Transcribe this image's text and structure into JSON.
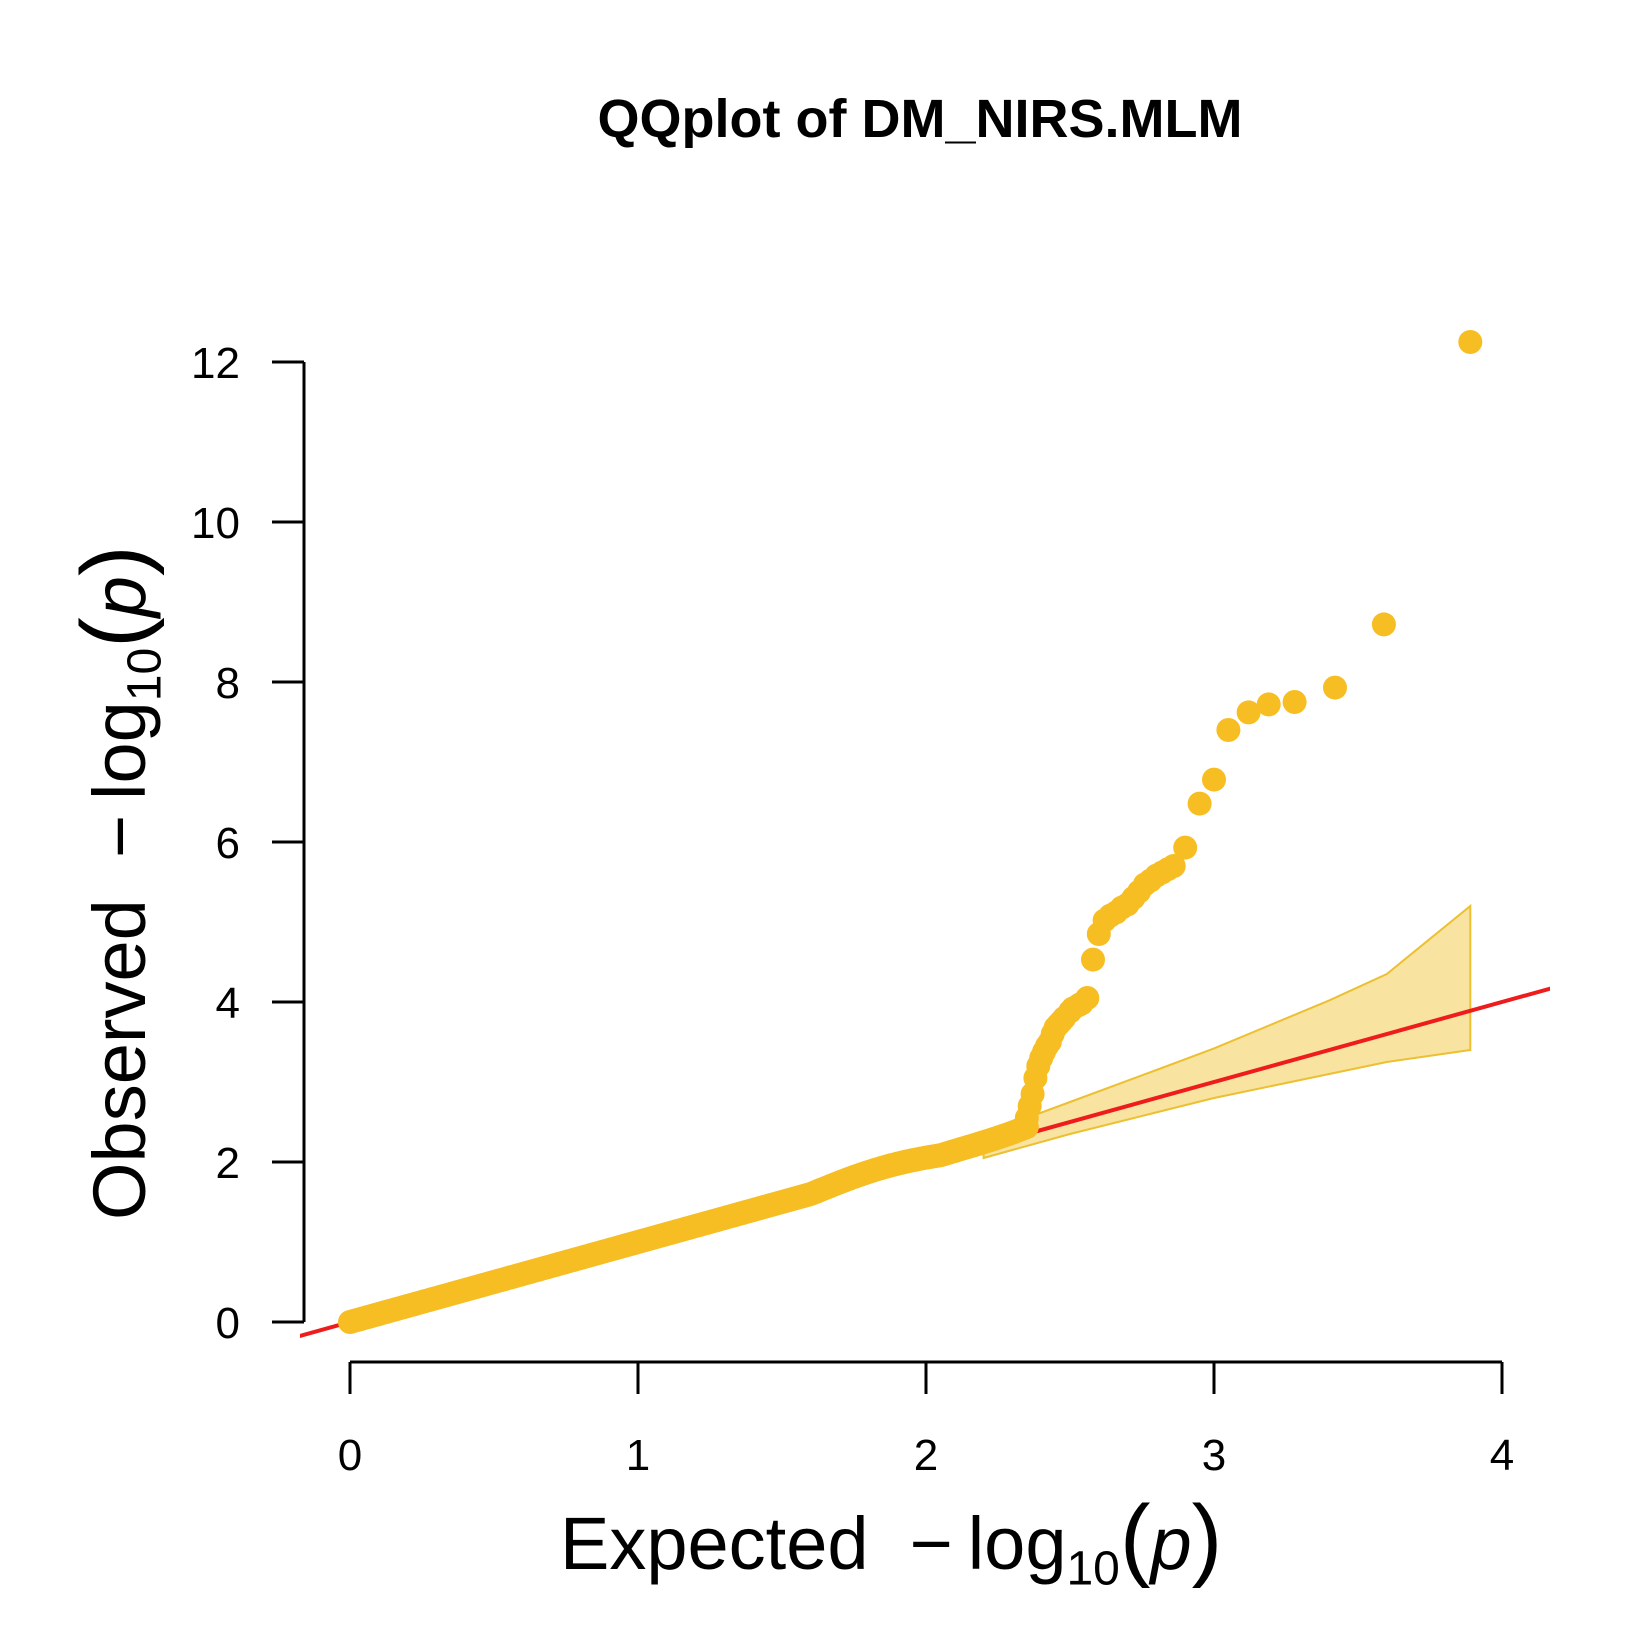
{
  "chart_data": {
    "type": "scatter",
    "title": "QQplot of DM_NIRS.MLM",
    "xlabel": {
      "word": "Expected",
      "minus": "−",
      "log": "log",
      "base": "10",
      "open": "(",
      "var": "p",
      "close": ")"
    },
    "ylabel": {
      "word": "Observed",
      "minus": "−",
      "log": "log",
      "base": "10",
      "open": "(",
      "var": "p",
      "close": ")"
    },
    "xlim": [
      0,
      4
    ],
    "ylim": [
      0,
      12
    ],
    "x_ticks": [
      "0",
      "1",
      "2",
      "3",
      "4"
    ],
    "y_ticks": [
      "0",
      "2",
      "4",
      "6",
      "8",
      "10",
      "12"
    ],
    "grid": false,
    "legend": "none",
    "colors": {
      "points": "#F6BE22",
      "reference_line": "#EE1C1C",
      "band_fill": "#F9E3A0",
      "band_edge": "#ECC030",
      "axis": "#000000"
    },
    "reference_line": {
      "slope": 1,
      "intercept": 0
    },
    "confidence_band": {
      "x": [
        2.2,
        2.5,
        2.8,
        3.0,
        3.2,
        3.4,
        3.6,
        3.89
      ],
      "upper": [
        2.35,
        2.75,
        3.15,
        3.42,
        3.72,
        4.02,
        4.35,
        5.2
      ],
      "lower": [
        2.05,
        2.35,
        2.62,
        2.8,
        2.95,
        3.1,
        3.25,
        3.4
      ]
    },
    "points": {
      "note": "observed vs expected -log10(p)",
      "x": [
        2.35,
        2.36,
        2.37,
        2.38,
        2.39,
        2.4,
        2.41,
        2.42,
        2.43,
        2.44,
        2.45,
        2.46,
        2.47,
        2.48,
        2.5,
        2.51,
        2.53,
        2.54,
        2.56,
        2.58,
        2.6,
        2.62,
        2.64,
        2.66,
        2.68,
        2.7,
        2.72,
        2.74,
        2.76,
        2.78,
        2.8,
        2.82,
        2.84,
        2.86,
        2.9,
        2.95,
        3.0,
        3.05,
        3.12,
        3.19,
        3.28,
        3.42,
        3.59,
        3.89
      ],
      "y": [
        2.55,
        2.7,
        2.85,
        3.05,
        3.2,
        3.3,
        3.38,
        3.45,
        3.5,
        3.6,
        3.68,
        3.72,
        3.76,
        3.8,
        3.88,
        3.92,
        3.96,
        3.98,
        4.05,
        4.53,
        4.85,
        5.02,
        5.08,
        5.12,
        5.18,
        5.22,
        5.3,
        5.38,
        5.47,
        5.52,
        5.58,
        5.62,
        5.66,
        5.7,
        5.93,
        6.48,
        6.78,
        7.4,
        7.62,
        7.72,
        7.75,
        7.93,
        8.72,
        12.25
      ]
    }
  }
}
